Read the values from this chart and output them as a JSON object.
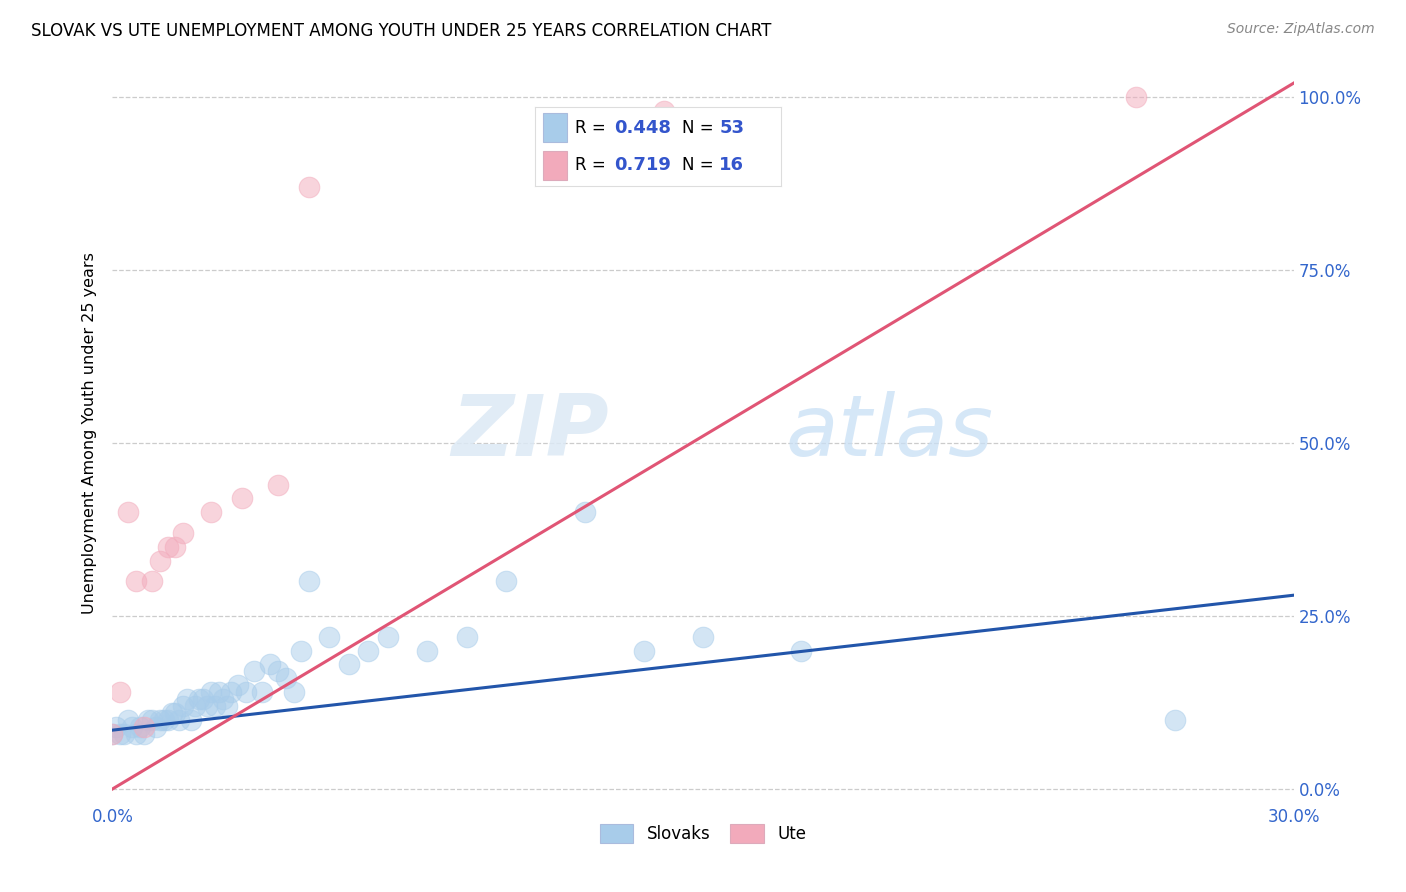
{
  "title": "SLOVAK VS UTE UNEMPLOYMENT AMONG YOUTH UNDER 25 YEARS CORRELATION CHART",
  "source": "Source: ZipAtlas.com",
  "ylabel_label": "Unemployment Among Youth under 25 years",
  "xlim": [
    0.0,
    0.3
  ],
  "ylim": [
    -0.02,
    1.05
  ],
  "blue_R": 0.448,
  "blue_N": 53,
  "pink_R": 0.719,
  "pink_N": 16,
  "blue_color": "#A8CCEA",
  "pink_color": "#F2AABB",
  "blue_line_color": "#2255AA",
  "pink_line_color": "#E05575",
  "background_color": "#ffffff",
  "watermark_zip": "ZIP",
  "watermark_atlas": "atlas",
  "blue_points_x": [
    0.0,
    0.001,
    0.002,
    0.003,
    0.004,
    0.005,
    0.006,
    0.007,
    0.008,
    0.009,
    0.01,
    0.011,
    0.012,
    0.013,
    0.014,
    0.015,
    0.016,
    0.017,
    0.018,
    0.019,
    0.02,
    0.021,
    0.022,
    0.023,
    0.024,
    0.025,
    0.026,
    0.027,
    0.028,
    0.029,
    0.03,
    0.032,
    0.034,
    0.036,
    0.038,
    0.04,
    0.042,
    0.044,
    0.046,
    0.048,
    0.05,
    0.055,
    0.06,
    0.065,
    0.07,
    0.08,
    0.09,
    0.1,
    0.12,
    0.135,
    0.15,
    0.175,
    0.27
  ],
  "blue_points_y": [
    0.08,
    0.09,
    0.08,
    0.08,
    0.1,
    0.09,
    0.08,
    0.09,
    0.08,
    0.1,
    0.1,
    0.09,
    0.1,
    0.1,
    0.1,
    0.11,
    0.11,
    0.1,
    0.12,
    0.13,
    0.1,
    0.12,
    0.13,
    0.13,
    0.12,
    0.14,
    0.12,
    0.14,
    0.13,
    0.12,
    0.14,
    0.15,
    0.14,
    0.17,
    0.14,
    0.18,
    0.17,
    0.16,
    0.14,
    0.2,
    0.3,
    0.22,
    0.18,
    0.2,
    0.22,
    0.2,
    0.22,
    0.3,
    0.4,
    0.2,
    0.22,
    0.2,
    0.1
  ],
  "pink_points_x": [
    0.0,
    0.002,
    0.004,
    0.006,
    0.008,
    0.01,
    0.012,
    0.014,
    0.016,
    0.018,
    0.025,
    0.033,
    0.042,
    0.05,
    0.14,
    0.26
  ],
  "pink_points_y": [
    0.08,
    0.14,
    0.4,
    0.3,
    0.09,
    0.3,
    0.33,
    0.35,
    0.35,
    0.37,
    0.4,
    0.42,
    0.44,
    0.87,
    0.98,
    1.0
  ],
  "blue_line_x0": 0.0,
  "blue_line_x1": 0.3,
  "blue_line_y0": 0.085,
  "blue_line_y1": 0.28,
  "pink_line_x0": 0.0,
  "pink_line_x1": 0.3,
  "pink_line_y0": 0.0,
  "pink_line_y1": 1.02
}
